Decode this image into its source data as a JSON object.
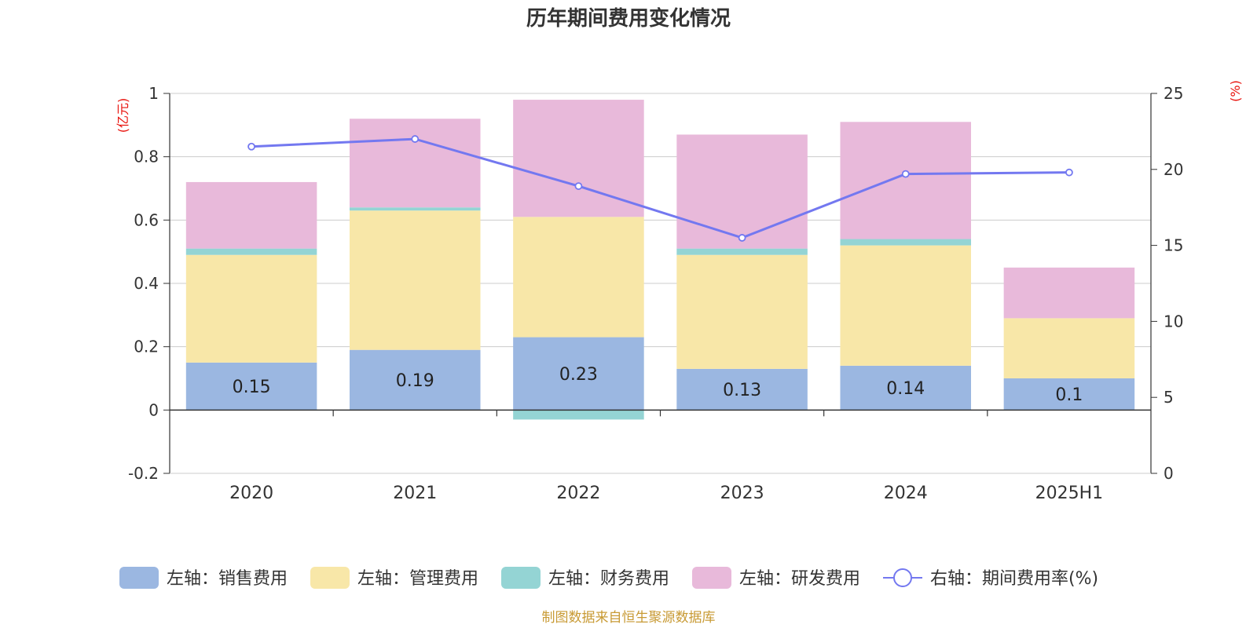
{
  "chart_data": {
    "type": "bar",
    "title": "历年期间费用变化情况",
    "categories": [
      "2020",
      "2021",
      "2022",
      "2023",
      "2024",
      "2025H1"
    ],
    "y_left": {
      "unit": "(亿元)",
      "ylim": [
        -0.2,
        1
      ],
      "ticks": [
        "-0.2",
        "0",
        "0.2",
        "0.4",
        "0.6",
        "0.8",
        "1"
      ]
    },
    "y_right": {
      "unit": "(%)",
      "ylim": [
        0,
        25
      ],
      "ticks": [
        "0",
        "5",
        "10",
        "15",
        "20",
        "25"
      ]
    },
    "series": [
      {
        "name": "左轴：销售费用",
        "axis": "left",
        "kind": "bar",
        "color": "#9bb7e1",
        "values": [
          0.15,
          0.19,
          0.23,
          0.13,
          0.14,
          0.1
        ],
        "labels": [
          "0.15",
          "0.19",
          "0.23",
          "0.13",
          "0.14",
          "0.1"
        ]
      },
      {
        "name": "左轴：管理费用",
        "axis": "left",
        "kind": "bar",
        "color": "#f8e7a8",
        "values": [
          0.34,
          0.44,
          0.38,
          0.36,
          0.38,
          0.19
        ]
      },
      {
        "name": "左轴：财务费用",
        "axis": "left",
        "kind": "bar",
        "color": "#94d4d4",
        "values": [
          0.02,
          0.01,
          -0.03,
          0.02,
          0.02,
          0.0
        ]
      },
      {
        "name": "左轴：研发费用",
        "axis": "left",
        "kind": "bar",
        "color": "#e8b9da",
        "values": [
          0.21,
          0.28,
          0.37,
          0.36,
          0.37,
          0.16
        ]
      },
      {
        "name": "右轴：期间费用率(%)",
        "axis": "right",
        "kind": "line",
        "color": "#7378f0",
        "values": [
          21.5,
          22.0,
          18.9,
          15.5,
          19.7,
          19.8
        ]
      }
    ],
    "grid": true,
    "legend_position": "bottom"
  },
  "source_note": "制图数据来自恒生聚源数据库"
}
